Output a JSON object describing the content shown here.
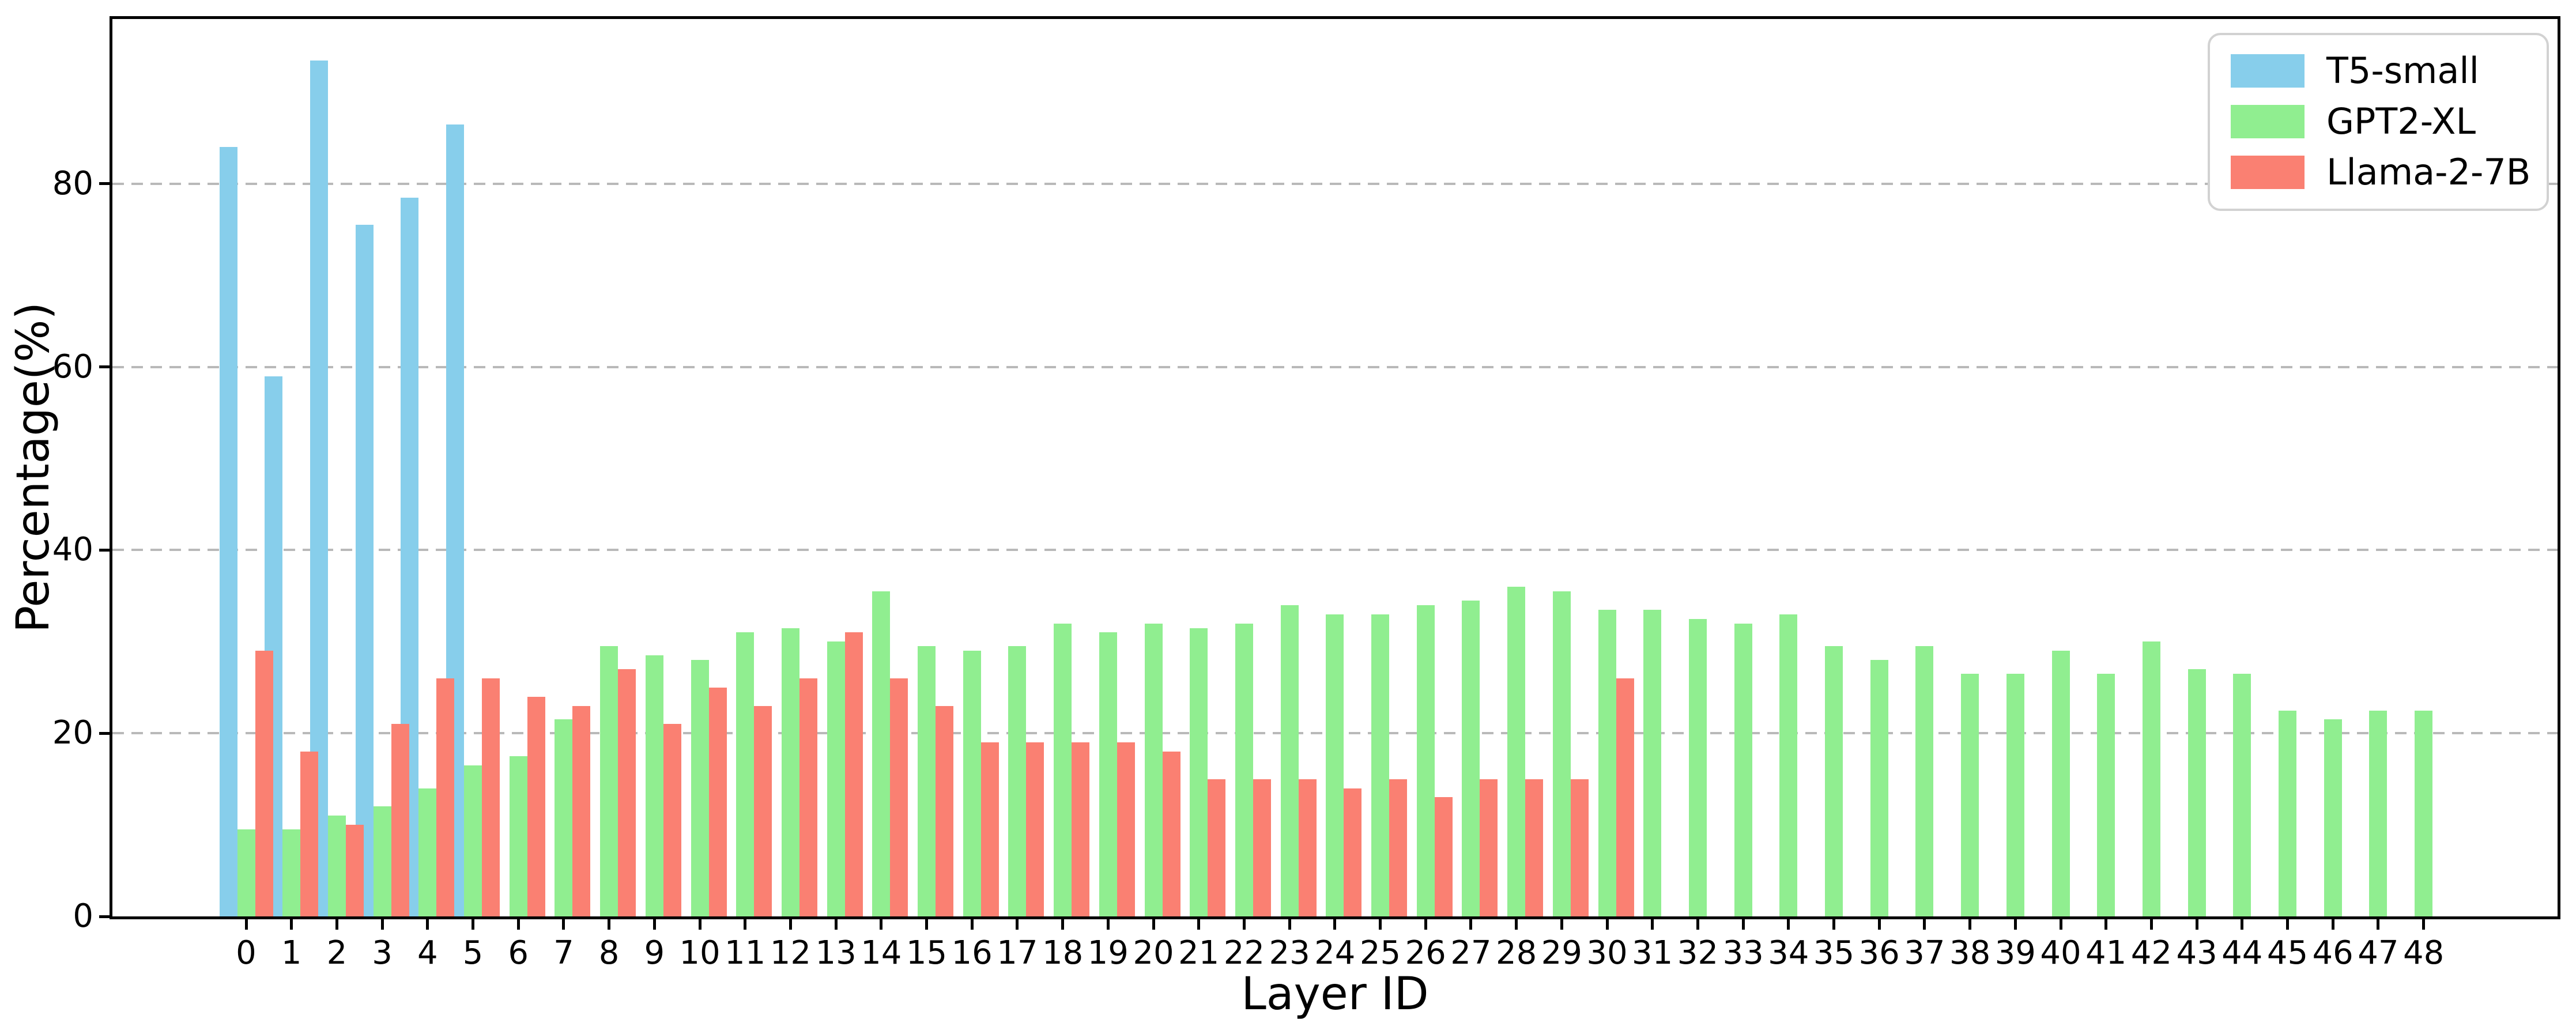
{
  "chart_data": {
    "type": "bar",
    "title": "",
    "xlabel": "Layer ID",
    "ylabel": "Percentage(%)",
    "categories": [
      0,
      1,
      2,
      3,
      4,
      5,
      6,
      7,
      8,
      9,
      10,
      11,
      12,
      13,
      14,
      15,
      16,
      17,
      18,
      19,
      20,
      21,
      22,
      23,
      24,
      25,
      26,
      27,
      28,
      29,
      30,
      31,
      32,
      33,
      34,
      35,
      36,
      37,
      38,
      39,
      40,
      41,
      42,
      43,
      44,
      45,
      46,
      47,
      48
    ],
    "yticks": [
      0,
      20,
      40,
      60,
      80
    ],
    "ylim": [
      0,
      98
    ],
    "grid": "horizontal dashed at yticks",
    "legend_position": "upper right",
    "series": [
      {
        "id": "t5-small",
        "name": "T5-small",
        "color": "#87CEEB",
        "values": [
          84,
          59,
          93.5,
          75.5,
          78.5,
          86.5,
          null,
          null,
          null,
          null,
          null,
          null,
          null,
          null,
          null,
          null,
          null,
          null,
          null,
          null,
          null,
          null,
          null,
          null,
          null,
          null,
          null,
          null,
          null,
          null,
          null,
          null,
          null,
          null,
          null,
          null,
          null,
          null,
          null,
          null,
          null,
          null,
          null,
          null,
          null,
          null,
          null,
          null,
          null
        ]
      },
      {
        "id": "gpt2-xl",
        "name": "GPT2-XL",
        "color": "#90EE90",
        "values": [
          9.5,
          9.5,
          11,
          12,
          14,
          16.5,
          17.5,
          21.5,
          29.5,
          28.5,
          28,
          31,
          31.5,
          30,
          35.5,
          29.5,
          29,
          29.5,
          32,
          31,
          32,
          31.5,
          32,
          34,
          33,
          33,
          34,
          34.5,
          36,
          35.5,
          33.5,
          33.5,
          32.5,
          32,
          33,
          29.5,
          28,
          29.5,
          26.5,
          26.5,
          29,
          26.5,
          30,
          27,
          26.5,
          22.5,
          21.5,
          22.5,
          22.5
        ]
      },
      {
        "id": "llama-2-7b",
        "name": "Llama-2-7B",
        "color": "#FA8072",
        "values": [
          29,
          18,
          10,
          21,
          26,
          26,
          24,
          23,
          27,
          21,
          25,
          23,
          26,
          31,
          26,
          23,
          19,
          19,
          19,
          19,
          18,
          15,
          15,
          15,
          14,
          15,
          13,
          15,
          15,
          15,
          26,
          null,
          null,
          null,
          null,
          null,
          null,
          null,
          null,
          null,
          null,
          null,
          null,
          null,
          null,
          null,
          null,
          null,
          null
        ]
      }
    ]
  }
}
